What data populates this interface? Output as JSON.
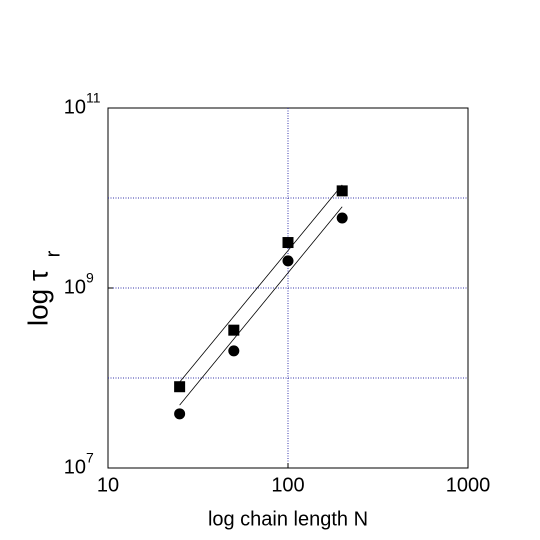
{
  "chart_data": {
    "type": "scatter",
    "xlabel": "log chain length N",
    "ylabel": {
      "text": "log τ",
      "subscript": "r"
    },
    "xscale": "log",
    "yscale": "log",
    "xlim": [
      10,
      1000
    ],
    "ylim": [
      10000000,
      100000000000
    ],
    "xticks": [
      10,
      100,
      1000
    ],
    "yticks": [
      {
        "value": 10000000,
        "label": "10",
        "exponent": "7"
      },
      {
        "value": 1000000000,
        "label": "10",
        "exponent": "9"
      },
      {
        "value": 100000000000,
        "label": "10",
        "exponent": "11"
      }
    ],
    "xgrid": [
      100
    ],
    "ygrid": [
      100000000,
      1000000000,
      10000000000
    ],
    "grid_color": "#3333aa",
    "series": [
      {
        "marker": "square",
        "color": "#000000",
        "x": [
          25,
          50,
          100,
          200
        ],
        "values": [
          80000000,
          340000000,
          3200000000,
          12000000000
        ]
      },
      {
        "marker": "circle",
        "color": "#000000",
        "x": [
          25,
          50,
          100,
          200
        ],
        "values": [
          40000000,
          200000000,
          2000000000,
          6000000000
        ]
      },
      {
        "marker": "line",
        "color": "#000000",
        "x": [
          25,
          200
        ],
        "values": [
          90000000,
          14000000000
        ]
      },
      {
        "marker": "line",
        "color": "#000000",
        "x": [
          25,
          200
        ],
        "values": [
          50000000,
          8000000000
        ]
      }
    ]
  }
}
